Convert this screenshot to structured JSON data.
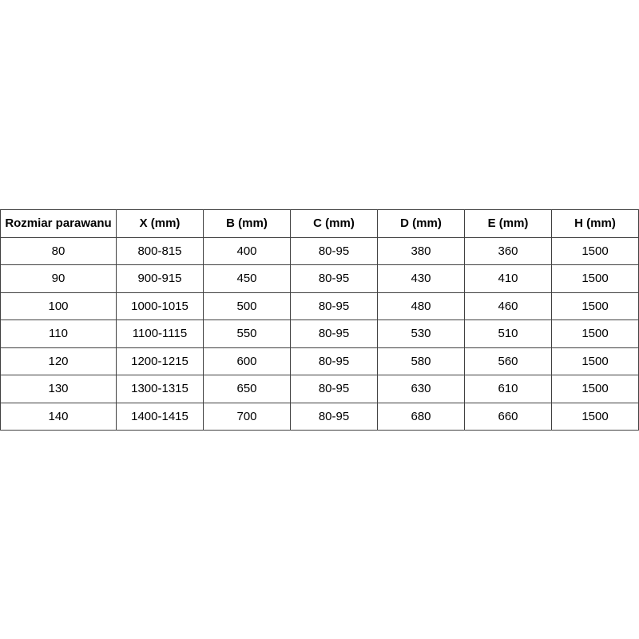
{
  "table": {
    "headers": [
      "Rozmiar parawanu",
      "X (mm)",
      "B (mm)",
      "C (mm)",
      "D (mm)",
      "E (mm)",
      "H (mm)"
    ],
    "rows": [
      [
        "80",
        "800-815",
        "400",
        "80-95",
        "380",
        "360",
        "1500"
      ],
      [
        "90",
        "900-915",
        "450",
        "80-95",
        "430",
        "410",
        "1500"
      ],
      [
        "100",
        "1000-1015",
        "500",
        "80-95",
        "480",
        "460",
        "1500"
      ],
      [
        "110",
        "1100-1115",
        "550",
        "80-95",
        "530",
        "510",
        "1500"
      ],
      [
        "120",
        "1200-1215",
        "600",
        "80-95",
        "580",
        "560",
        "1500"
      ],
      [
        "130",
        "1300-1315",
        "650",
        "80-95",
        "630",
        "610",
        "1500"
      ],
      [
        "140",
        "1400-1415",
        "700",
        "80-95",
        "680",
        "660",
        "1500"
      ]
    ]
  }
}
